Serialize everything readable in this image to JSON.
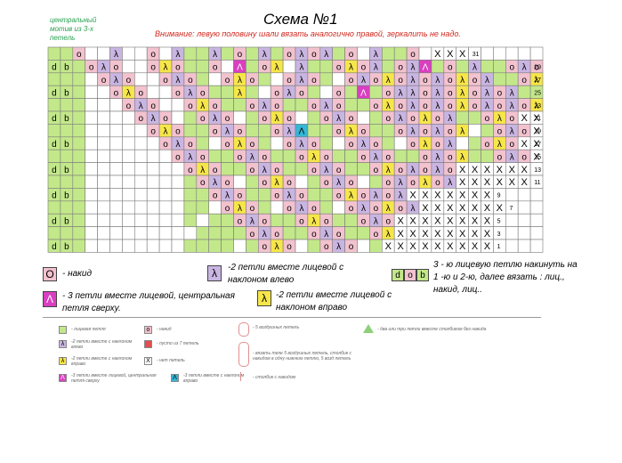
{
  "header": {
    "title": "Схема №1",
    "warning": "Внимание: левую половину шали вязать аналогично правой, зеркалить не надо.",
    "motif_note": "центральный мотив из 3-х петель"
  },
  "colors": {
    "green": "#c3e88a",
    "white": "#ffffff",
    "pink": "#f3c2cf",
    "purple": "#c9b5e2",
    "yellow": "#f6e64a",
    "magenta": "#d93fc0",
    "blue": "#35b7d6",
    "grid_line": "#7a7a7a"
  },
  "chart": {
    "columns": 40,
    "rows": [
      {
        "label": "31",
        "cells": "..O..λ..O.λ..λ.O.λ.OλOλ.O.λ..O.XXX"
      },
      {
        "label": "29",
        "cells": "db.OλO..OλO..O.A.Oλ.λ..OλOλ.OλA.O.λ..OλOXXX"
      },
      {
        "label": "27",
        "cells": "....OλO..OλO..OλO..OλO..OλOλOλOλOλOλ..OλOXXX"
      },
      {
        "label": "25",
        "cells": "db...OλO..OλO..λ..OλO..O.A.OλλOλOλOλOλ..OλOXXX"
      },
      {
        "label": "23",
        "cells": "......OλO..OλO..OλO..OλO..OλOλOλOλOλOλOλOXXX"
      },
      {
        "label": "21",
        "cells": "db.....OλO..OλO..OλO..OλO..OλOλOλ..OλOXXXX"
      },
      {
        "label": "19",
        "cells": "........OλO..OλO..OλB..OλO..OλOλOλ..OλOXXXX"
      },
      {
        "label": "17",
        "cells": "db.......OλO..OλO..OλO..OλO..OλOλ..OλOXXXXX"
      },
      {
        "label": "15",
        "cells": "..........OλO..OλO..OλO..OλO..OλOλ..OλOXXXXX"
      },
      {
        "label": "13",
        "cells": "db.........OλO..OλO..OλO..OλOλOλOXXXXXX"
      },
      {
        "label": "11",
        "cells": "............OλO..OλO..OλO..OλOλOλXXXXXX"
      },
      {
        "label": "9",
        "cells": "db...........OλO..OλO..OλOλOλXXXXXXX"
      },
      {
        "label": "7",
        "cells": "..............OλO..OλO..OλOλOλXXXXXXX"
      },
      {
        "label": "5",
        "cells": "db.............OλO..OλO..OλOXXXXXXXX"
      },
      {
        "label": "3",
        "cells": "................OλO..OλO..OλXXXXXXXX"
      },
      {
        "label": "1",
        "cells": "db...............OλO..OλO..XXXXXXXXX"
      }
    ]
  },
  "legend": {
    "yo": {
      "symbol": "O",
      "text": "- накид"
    },
    "k2tog_left": {
      "symbol": "λ",
      "text": "-2 петли вместе лицевой с наклоном влево"
    },
    "cast": {
      "symbols": [
        "d",
        "o",
        "b"
      ],
      "text": "3 - ю лицевую петлю накинуть на 1 -ю и 2-ю, далее вязать : лиц., накид, лиц.."
    },
    "k3tog_center": {
      "symbol": "Λ",
      "text": "- 3 петли вместе лицевой, центральная петля сверху."
    },
    "k2tog_right": {
      "symbol": "λ",
      "text": "-2 петли вместе лицевой с наклоном вправо"
    }
  },
  "mini_legend": {
    "col1": [
      {
        "text": "- лицевая петля"
      },
      {
        "text": "-2 петли вместе с наклоном влево"
      },
      {
        "text": "-2 петли вместе с наклоном вправо"
      },
      {
        "text": "-3 петли вместе лицевой, центральная петля сверху"
      }
    ],
    "col2": [
      {
        "text": "- накид"
      },
      {
        "text": "- пусто из 7 петель"
      },
      {
        "text": "- нет петель"
      },
      {
        "text": "-3 петли вместе с наклоном вправо"
      }
    ],
    "col3": [
      {
        "text": "- 5 воздушных петель"
      },
      {
        "text": "- вязать теле 5 воздушных петель, столбик с накидом в одну нижнюю петлю, 5 возд петель"
      },
      {
        "text": "- столбик с накидом"
      }
    ],
    "col4": [
      {
        "text": "- два или три петли вместе столбиком без накида"
      }
    ]
  }
}
